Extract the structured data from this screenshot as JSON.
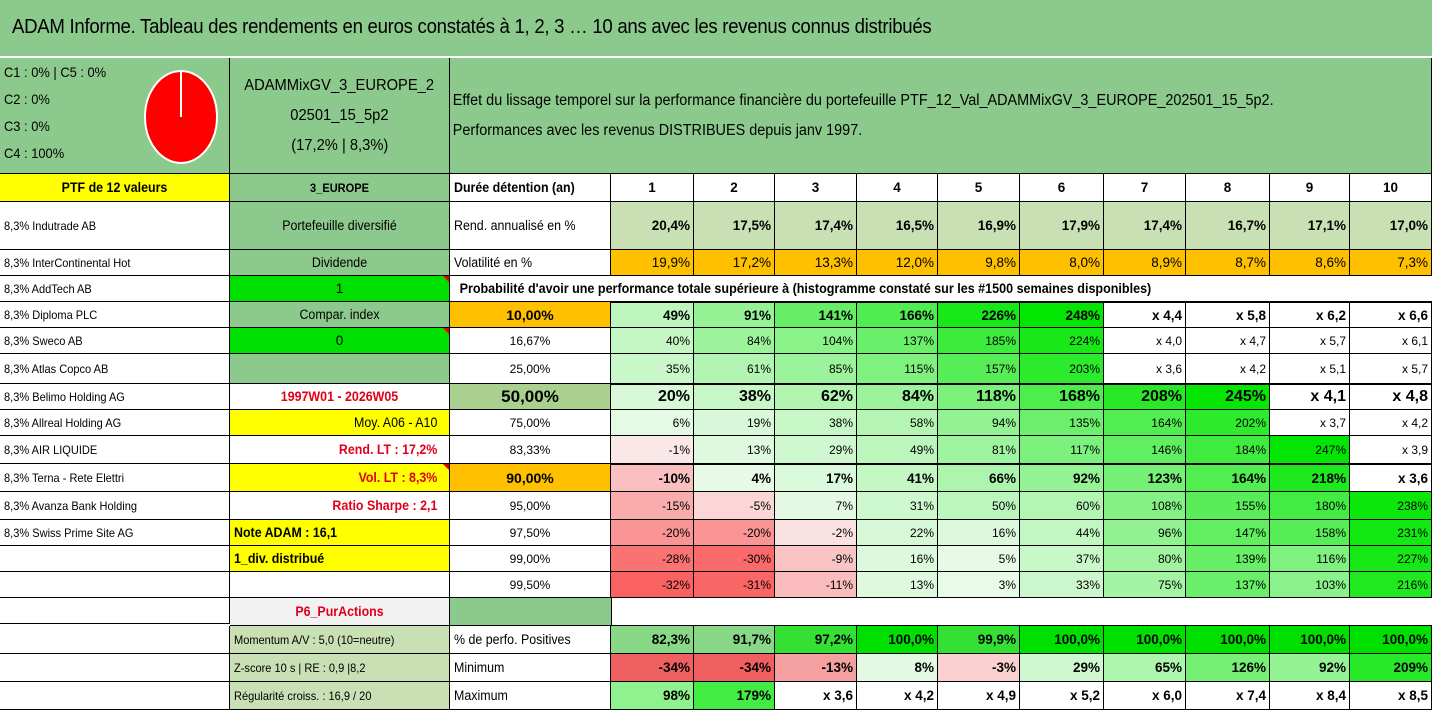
{
  "title": "ADAM Informe. Tableau des rendements en euros constatés à 1, 2, 3 … 10 ans avec les revenus connus distribués",
  "allocation": {
    "lines": [
      "C1 : 0% | C5 : 0%",
      "C2 : 0%",
      "C3 : 0%",
      "C4 : 100%"
    ],
    "pie_share_c4": 100,
    "pie_color": "#ff0000"
  },
  "portfolio": {
    "name_line1": "ADAMMixGV_3_EUROPE_2",
    "name_line2": "02501_15_5p2",
    "name_line3": "(17,2% | 8,3%)"
  },
  "effect_text": {
    "line1": "Effet du lissage temporel sur la performance financière du portefeuille PTF_12_Val_ADAMMixGV_3_EUROPE_202501_15_5p2.",
    "line2": "Performances avec les revenus DISTRIBUES depuis janv 1997."
  },
  "ptf_label": "PTF de 12 valeurs",
  "zone_label": "3_EUROPE",
  "duration_label": "Durée détention (an)",
  "years": [
    "1",
    "2",
    "3",
    "4",
    "5",
    "6",
    "7",
    "8",
    "9",
    "10"
  ],
  "holdings": [
    "8,3% Indutrade AB",
    "8,3% InterContinental Hot",
    "8,3% AddTech AB",
    "8,3% Diploma PLC",
    "8,3% Sweco AB",
    "8,3% Atlas Copco AB",
    "8,3% Belimo Holding AG",
    "8,3% Allreal Holding AG",
    "8,3% AIR LIQUIDE",
    "8,3% Terna - Rete Elettri",
    "8,3% Avanza Bank Holding",
    "8,3% Swiss Prime Site AG"
  ],
  "info_column": {
    "diversified": "Portefeuille diversifié",
    "dividend_label": "Dividende",
    "dividend_value": "1",
    "compar_label": "Compar. index",
    "compar_value": "0",
    "period": "1997W01 - 2026W05",
    "moy": "Moy. A06 - A10",
    "rend_lt": "Rend. LT : 17,2%",
    "vol_lt": "Vol. LT : 8,3%",
    "sharpe": "Ratio Sharpe : 2,1",
    "note": "Note ADAM : 16,1",
    "div_distrib": "1_div. distribué",
    "p6": "P6_PurActions"
  },
  "stats": {
    "annualized_label": "Rend. annualisé en %",
    "annualized": [
      "20,4%",
      "17,5%",
      "17,4%",
      "16,5%",
      "16,9%",
      "17,9%",
      "17,4%",
      "16,7%",
      "17,1%",
      "17,0%"
    ],
    "volatility_label": "Volatilité en %",
    "volatility": [
      "19,9%",
      "17,2%",
      "13,3%",
      "12,0%",
      "9,8%",
      "8,0%",
      "8,9%",
      "8,7%",
      "8,6%",
      "7,3%"
    ]
  },
  "probability_title": "Probabilité d'avoir une performance totale supérieure à (histogramme constaté sur les #1500 semaines disponibles)",
  "probability_rows": [
    {
      "p": "10,00%",
      "v": [
        "49%",
        "91%",
        "141%",
        "166%",
        "226%",
        "248%",
        "x 4,4",
        "x 5,8",
        "x 6,2",
        "x 6,6"
      ]
    },
    {
      "p": "16,67%",
      "v": [
        "40%",
        "84%",
        "104%",
        "137%",
        "185%",
        "224%",
        "x 4,0",
        "x 4,7",
        "x 5,7",
        "x 6,1"
      ]
    },
    {
      "p": "25,00%",
      "v": [
        "35%",
        "61%",
        "85%",
        "115%",
        "157%",
        "203%",
        "x 3,6",
        "x 4,2",
        "x 5,1",
        "x 5,7"
      ]
    },
    {
      "p": "50,00%",
      "v": [
        "20%",
        "38%",
        "62%",
        "84%",
        "118%",
        "168%",
        "208%",
        "245%",
        "x 4,1",
        "x 4,8"
      ]
    },
    {
      "p": "75,00%",
      "v": [
        "6%",
        "19%",
        "38%",
        "58%",
        "94%",
        "135%",
        "164%",
        "202%",
        "x 3,7",
        "x 4,2"
      ]
    },
    {
      "p": "83,33%",
      "v": [
        "-1%",
        "13%",
        "29%",
        "49%",
        "81%",
        "117%",
        "146%",
        "184%",
        "247%",
        "x 3,9"
      ]
    },
    {
      "p": "90,00%",
      "v": [
        "-10%",
        "4%",
        "17%",
        "41%",
        "66%",
        "92%",
        "123%",
        "164%",
        "218%",
        "x 3,6"
      ]
    },
    {
      "p": "95,00%",
      "v": [
        "-15%",
        "-5%",
        "7%",
        "31%",
        "50%",
        "60%",
        "108%",
        "155%",
        "180%",
        "238%"
      ]
    },
    {
      "p": "97,50%",
      "v": [
        "-20%",
        "-20%",
        "-2%",
        "22%",
        "16%",
        "44%",
        "96%",
        "147%",
        "158%",
        "231%"
      ]
    },
    {
      "p": "99,00%",
      "v": [
        "-28%",
        "-30%",
        "-9%",
        "16%",
        "5%",
        "37%",
        "80%",
        "139%",
        "116%",
        "227%"
      ]
    },
    {
      "p": "99,50%",
      "v": [
        "-32%",
        "-31%",
        "-11%",
        "13%",
        "3%",
        "33%",
        "75%",
        "137%",
        "103%",
        "216%"
      ]
    }
  ],
  "bottom": {
    "momentum": "Momentum A/V : 5,0 (10=neutre)",
    "zscore": "Z-score 10 s | RE : 0,9 |8,2",
    "regularite": "Régularité croiss. : 16,9 / 20",
    "positive_label": "% de perfo. Positives",
    "positive": [
      "82,3%",
      "91,7%",
      "97,2%",
      "100,0%",
      "99,9%",
      "100,0%",
      "100,0%",
      "100,0%",
      "100,0%",
      "100,0%"
    ],
    "min_label": "Minimum",
    "min": [
      "-34%",
      "-34%",
      "-13%",
      "8%",
      "-3%",
      "29%",
      "65%",
      "126%",
      "92%",
      "209%"
    ],
    "max_label": "Maximum",
    "max": [
      "98%",
      "179%",
      "x 3,6",
      "x 4,2",
      "x 4,9",
      "x 5,2",
      "x 6,0",
      "x 7,4",
      "x 8,4",
      "x 8,5"
    ]
  },
  "colors": {
    "header_green": "#8cc98c",
    "yellow": "#ffff00",
    "lime": "#00e000",
    "orange": "#ffc000",
    "red_text": "#e0001a"
  }
}
